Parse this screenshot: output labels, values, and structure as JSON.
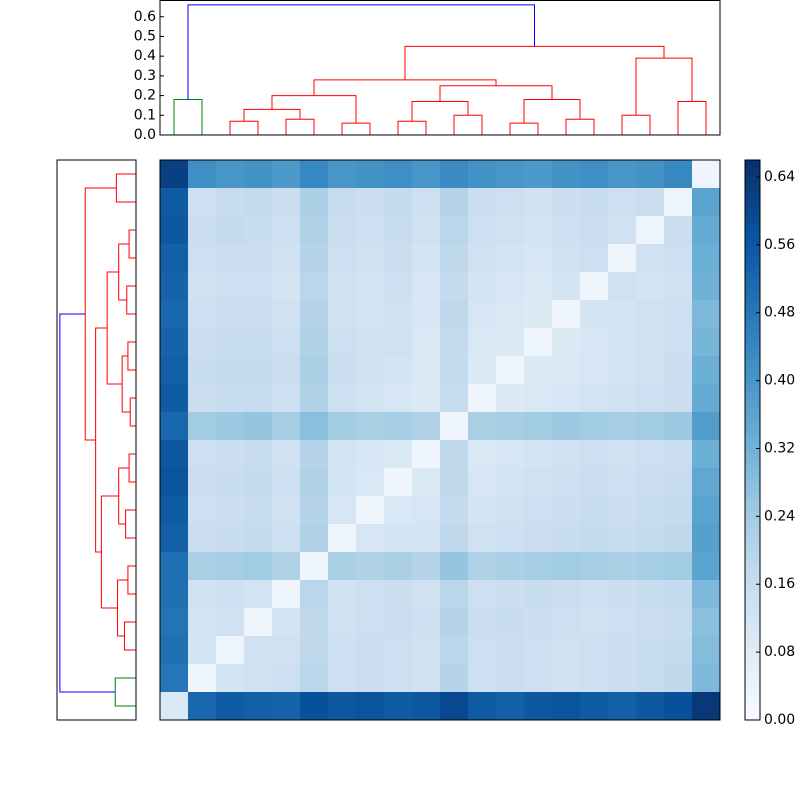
{
  "chart_data": {
    "type": "clustered-heatmap",
    "colormap": "Blues",
    "zlim": [
      0,
      0.66
    ],
    "colorbar_ticks": [
      {
        "value": 0,
        "label": "0.00"
      },
      0.08,
      0.16,
      0.24,
      0.32,
      {
        "value": 0.4,
        "label": "0.40"
      },
      0.48,
      0.56,
      0.64
    ],
    "matrix": [
      [
        0.62,
        0.42,
        0.4,
        0.41,
        0.39,
        0.44,
        0.4,
        0.41,
        0.42,
        0.4,
        0.43,
        0.41,
        0.4,
        0.39,
        0.41,
        0.42,
        0.4,
        0.41,
        0.44,
        0.03
      ],
      [
        0.55,
        0.14,
        0.16,
        0.17,
        0.15,
        0.22,
        0.16,
        0.15,
        0.17,
        0.14,
        0.2,
        0.15,
        0.14,
        0.13,
        0.15,
        0.16,
        0.14,
        0.15,
        0.03,
        0.36
      ],
      [
        0.56,
        0.15,
        0.17,
        0.16,
        0.14,
        0.21,
        0.15,
        0.14,
        0.16,
        0.13,
        0.19,
        0.14,
        0.13,
        0.12,
        0.14,
        0.15,
        0.13,
        0.03,
        0.15,
        0.34
      ],
      [
        0.54,
        0.14,
        0.15,
        0.15,
        0.13,
        0.2,
        0.14,
        0.13,
        0.15,
        0.12,
        0.18,
        0.13,
        0.12,
        0.11,
        0.13,
        0.14,
        0.03,
        0.13,
        0.14,
        0.33
      ],
      [
        0.53,
        0.13,
        0.14,
        0.14,
        0.12,
        0.19,
        0.13,
        0.12,
        0.14,
        0.11,
        0.17,
        0.12,
        0.11,
        0.1,
        0.12,
        0.03,
        0.13,
        0.12,
        0.13,
        0.32
      ],
      [
        0.52,
        0.14,
        0.15,
        0.15,
        0.13,
        0.2,
        0.13,
        0.12,
        0.13,
        0.11,
        0.18,
        0.11,
        0.1,
        0.09,
        0.03,
        0.12,
        0.12,
        0.13,
        0.14,
        0.3
      ],
      [
        0.53,
        0.15,
        0.16,
        0.16,
        0.14,
        0.21,
        0.14,
        0.13,
        0.13,
        0.1,
        0.17,
        0.1,
        0.09,
        0.03,
        0.09,
        0.11,
        0.12,
        0.13,
        0.14,
        0.31
      ],
      [
        0.54,
        0.16,
        0.17,
        0.17,
        0.15,
        0.22,
        0.15,
        0.13,
        0.12,
        0.1,
        0.17,
        0.09,
        0.03,
        0.09,
        0.1,
        0.11,
        0.12,
        0.13,
        0.15,
        0.33
      ],
      [
        0.55,
        0.15,
        0.16,
        0.16,
        0.14,
        0.21,
        0.14,
        0.12,
        0.11,
        0.09,
        0.16,
        0.03,
        0.09,
        0.1,
        0.11,
        0.12,
        0.13,
        0.14,
        0.15,
        0.34
      ],
      [
        0.52,
        0.24,
        0.25,
        0.26,
        0.23,
        0.28,
        0.24,
        0.22,
        0.23,
        0.21,
        0.03,
        0.22,
        0.23,
        0.24,
        0.25,
        0.24,
        0.23,
        0.24,
        0.25,
        0.38
      ],
      [
        0.56,
        0.14,
        0.15,
        0.16,
        0.13,
        0.2,
        0.12,
        0.11,
        0.1,
        0.03,
        0.18,
        0.1,
        0.11,
        0.12,
        0.13,
        0.14,
        0.13,
        0.14,
        0.15,
        0.33
      ],
      [
        0.57,
        0.15,
        0.16,
        0.17,
        0.14,
        0.21,
        0.12,
        0.1,
        0.03,
        0.1,
        0.18,
        0.11,
        0.12,
        0.13,
        0.14,
        0.15,
        0.14,
        0.15,
        0.16,
        0.35
      ],
      [
        0.55,
        0.14,
        0.15,
        0.16,
        0.13,
        0.2,
        0.11,
        0.03,
        0.1,
        0.11,
        0.17,
        0.12,
        0.13,
        0.14,
        0.15,
        0.16,
        0.15,
        0.16,
        0.17,
        0.36
      ],
      [
        0.54,
        0.15,
        0.16,
        0.17,
        0.14,
        0.21,
        0.03,
        0.11,
        0.12,
        0.12,
        0.18,
        0.13,
        0.14,
        0.15,
        0.16,
        0.17,
        0.16,
        0.17,
        0.18,
        0.37
      ],
      [
        0.5,
        0.22,
        0.23,
        0.24,
        0.21,
        0.03,
        0.22,
        0.21,
        0.22,
        0.2,
        0.26,
        0.21,
        0.22,
        0.23,
        0.24,
        0.23,
        0.22,
        0.23,
        0.24,
        0.36
      ],
      [
        0.5,
        0.13,
        0.14,
        0.12,
        0.03,
        0.19,
        0.13,
        0.14,
        0.15,
        0.13,
        0.19,
        0.14,
        0.15,
        0.16,
        0.15,
        0.14,
        0.15,
        0.16,
        0.17,
        0.3
      ],
      [
        0.49,
        0.12,
        0.13,
        0.03,
        0.12,
        0.18,
        0.13,
        0.14,
        0.15,
        0.14,
        0.2,
        0.15,
        0.16,
        0.15,
        0.14,
        0.13,
        0.14,
        0.15,
        0.16,
        0.28
      ],
      [
        0.5,
        0.12,
        0.03,
        0.13,
        0.13,
        0.18,
        0.14,
        0.15,
        0.14,
        0.13,
        0.19,
        0.14,
        0.15,
        0.14,
        0.13,
        0.14,
        0.15,
        0.16,
        0.17,
        0.29
      ],
      [
        0.48,
        0.03,
        0.12,
        0.13,
        0.14,
        0.19,
        0.14,
        0.15,
        0.14,
        0.13,
        0.2,
        0.14,
        0.15,
        0.14,
        0.13,
        0.14,
        0.15,
        0.16,
        0.18,
        0.3
      ],
      [
        0.1,
        0.52,
        0.55,
        0.54,
        0.53,
        0.58,
        0.56,
        0.57,
        0.55,
        0.56,
        0.6,
        0.55,
        0.54,
        0.56,
        0.57,
        0.55,
        0.54,
        0.56,
        0.58,
        0.64
      ]
    ],
    "dendrogram_top": {
      "ylim": [
        0,
        0.685
      ],
      "yticks": [
        {
          "value": 0,
          "label": "0.0"
        },
        0.1,
        0.2,
        0.3,
        0.4,
        0.5,
        0.6
      ],
      "merges": [
        {
          "left": 0,
          "right": 1,
          "height": 0.18,
          "color": "#008000"
        },
        {
          "left": 2,
          "right": 3,
          "height": 0.07,
          "color": "#ff0000"
        },
        {
          "left": 4,
          "right": 5,
          "height": 0.08,
          "color": "#ff0000"
        },
        {
          "left": 21,
          "right": 22,
          "height": 0.13,
          "color": "#ff0000"
        },
        {
          "left": 6,
          "right": 7,
          "height": 0.06,
          "color": "#ff0000"
        },
        {
          "left": 23,
          "right": 24,
          "height": 0.2,
          "color": "#ff0000"
        },
        {
          "left": 8,
          "right": 9,
          "height": 0.07,
          "color": "#ff0000"
        },
        {
          "left": 10,
          "right": 11,
          "height": 0.1,
          "color": "#ff0000"
        },
        {
          "left": 26,
          "right": 27,
          "height": 0.17,
          "color": "#ff0000"
        },
        {
          "left": 12,
          "right": 13,
          "height": 0.06,
          "color": "#ff0000"
        },
        {
          "left": 14,
          "right": 15,
          "height": 0.08,
          "color": "#ff0000"
        },
        {
          "left": 29,
          "right": 30,
          "height": 0.18,
          "color": "#ff0000"
        },
        {
          "left": 28,
          "right": 31,
          "height": 0.25,
          "color": "#ff0000"
        },
        {
          "left": 25,
          "right": 32,
          "height": 0.28,
          "color": "#ff0000"
        },
        {
          "left": 16,
          "right": 17,
          "height": 0.1,
          "color": "#ff0000"
        },
        {
          "left": 18,
          "right": 19,
          "height": 0.17,
          "color": "#ff0000"
        },
        {
          "left": 34,
          "right": 35,
          "height": 0.39,
          "color": "#ff0000"
        },
        {
          "left": 33,
          "right": 36,
          "height": 0.45,
          "color": "#ff0000"
        },
        {
          "left": 20,
          "right": 37,
          "height": 0.66,
          "color": "#0000ff"
        }
      ]
    },
    "dendrogram_left": {
      "xlim": [
        0.685,
        0
      ],
      "merges": [
        {
          "left": 18,
          "right": 19,
          "height": 0.18,
          "color": "#008000"
        },
        {
          "left": 0,
          "right": 1,
          "height": 0.17,
          "color": "#ff0000"
        },
        {
          "left": 2,
          "right": 3,
          "height": 0.06,
          "color": "#ff0000"
        },
        {
          "left": 4,
          "right": 5,
          "height": 0.08,
          "color": "#ff0000"
        },
        {
          "left": 22,
          "right": 23,
          "height": 0.15,
          "color": "#ff0000"
        },
        {
          "left": 6,
          "right": 7,
          "height": 0.07,
          "color": "#ff0000"
        },
        {
          "left": 8,
          "right": 9,
          "height": 0.05,
          "color": "#ff0000"
        },
        {
          "left": 25,
          "right": 26,
          "height": 0.12,
          "color": "#ff0000"
        },
        {
          "left": 24,
          "right": 27,
          "height": 0.25,
          "color": "#ff0000"
        },
        {
          "left": 10,
          "right": 11,
          "height": 0.06,
          "color": "#ff0000"
        },
        {
          "left": 12,
          "right": 13,
          "height": 0.09,
          "color": "#ff0000"
        },
        {
          "left": 29,
          "right": 30,
          "height": 0.15,
          "color": "#ff0000"
        },
        {
          "left": 14,
          "right": 15,
          "height": 0.07,
          "color": "#ff0000"
        },
        {
          "left": 16,
          "right": 17,
          "height": 0.1,
          "color": "#ff0000"
        },
        {
          "left": 32,
          "right": 33,
          "height": 0.16,
          "color": "#ff0000"
        },
        {
          "left": 31,
          "right": 34,
          "height": 0.3,
          "color": "#ff0000"
        },
        {
          "left": 28,
          "right": 35,
          "height": 0.35,
          "color": "#ff0000"
        },
        {
          "left": 21,
          "right": 36,
          "height": 0.44,
          "color": "#ff0000"
        },
        {
          "left": 37,
          "right": 20,
          "height": 0.66,
          "color": "#0000ff"
        }
      ]
    }
  }
}
